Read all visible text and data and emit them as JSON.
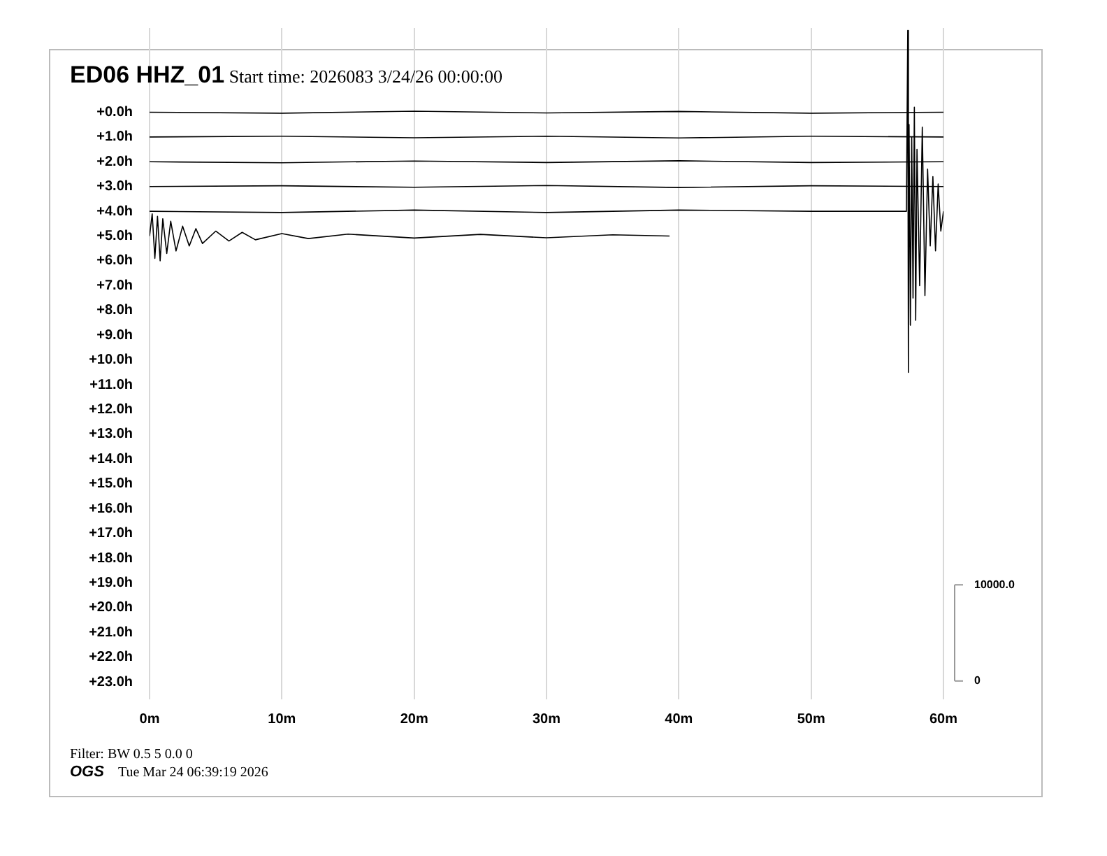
{
  "chart_data": {
    "type": "line",
    "title": "ED06 HHZ_01",
    "subtitle": "Start time: 2026083  3/24/26 00:00:00",
    "annotations": [
      "Filter: BW 0.5 5 0.0 0",
      "OGS",
      "Tue Mar 24 06:39:19 2026"
    ],
    "xlim": [
      0,
      60
    ],
    "xticks": [
      {
        "value": 0,
        "label": "0m"
      },
      {
        "value": 10,
        "label": "10m"
      },
      {
        "value": 20,
        "label": "20m"
      },
      {
        "value": 30,
        "label": "30m"
      },
      {
        "value": 40,
        "label": "40m"
      },
      {
        "value": 50,
        "label": "50m"
      },
      {
        "value": 60,
        "label": "60m"
      }
    ],
    "ylim": [
      23.7,
      -3.4
    ],
    "yticks": [
      {
        "value": 0,
        "label": "+0.0h"
      },
      {
        "value": 1,
        "label": "+1.0h"
      },
      {
        "value": 2,
        "label": "+2.0h"
      },
      {
        "value": 3,
        "label": "+3.0h"
      },
      {
        "value": 4,
        "label": "+4.0h"
      },
      {
        "value": 5,
        "label": "+5.0h"
      },
      {
        "value": 6,
        "label": "+6.0h"
      },
      {
        "value": 7,
        "label": "+7.0h"
      },
      {
        "value": 8,
        "label": "+8.0h"
      },
      {
        "value": 9,
        "label": "+9.0h"
      },
      {
        "value": 10,
        "label": "+10.0h"
      },
      {
        "value": 11,
        "label": "+11.0h"
      },
      {
        "value": 12,
        "label": "+12.0h"
      },
      {
        "value": 13,
        "label": "+13.0h"
      },
      {
        "value": 14,
        "label": "+14.0h"
      },
      {
        "value": 15,
        "label": "+15.0h"
      },
      {
        "value": 16,
        "label": "+16.0h"
      },
      {
        "value": 17,
        "label": "+17.0h"
      },
      {
        "value": 18,
        "label": "+18.0h"
      },
      {
        "value": 19,
        "label": "+19.0h"
      },
      {
        "value": 20,
        "label": "+20.0h"
      },
      {
        "value": 21,
        "label": "+21.0h"
      },
      {
        "value": 22,
        "label": "+22.0h"
      },
      {
        "value": 23,
        "label": "+23.0h"
      }
    ],
    "y2lim": [
      -1900,
      67900
    ],
    "y2ticks": [
      0,
      {
        "value": 10000,
        "label": "10000.0"
      }
    ],
    "grid": "x",
    "legend": false,
    "marker": "none",
    "line_style": "solid",
    "series": [
      {
        "color": "#000000",
        "x": [
          0,
          10,
          20,
          30,
          40,
          50,
          60
        ],
        "values": [
          0,
          0.04,
          -0.04,
          0.03,
          -0.03,
          0.04,
          0
        ]
      },
      {
        "color": "#000000",
        "x": [
          0,
          10,
          20,
          30,
          40,
          50,
          60
        ],
        "values": [
          1,
          0.97,
          1.03,
          0.97,
          1.04,
          0.97,
          1
        ]
      },
      {
        "color": "#000000",
        "x": [
          0,
          10,
          20,
          30,
          40,
          50,
          60
        ],
        "values": [
          2,
          2.04,
          1.97,
          2.03,
          1.96,
          2.03,
          2
        ]
      },
      {
        "color": "#000000",
        "x": [
          0,
          10,
          20,
          30,
          40,
          50,
          60
        ],
        "values": [
          3,
          2.97,
          3.03,
          2.96,
          3.04,
          2.97,
          3
        ]
      },
      {
        "color": "#000000",
        "x": [
          0,
          10,
          20,
          30,
          40,
          50,
          57.2,
          57.3,
          57.35,
          57.4,
          57.5,
          57.6,
          57.7,
          57.8,
          57.9,
          58.0,
          58.2,
          58.4,
          58.6,
          58.8,
          59.0,
          59.2,
          59.4,
          59.6,
          59.8,
          60
        ],
        "values": [
          4,
          4.05,
          3.95,
          4.05,
          3.95,
          4,
          4,
          -3.3,
          10.5,
          0.5,
          8.6,
          1,
          7.5,
          -0.2,
          8.4,
          1.5,
          7,
          0.6,
          7.4,
          2.3,
          5.4,
          2.6,
          5.6,
          2.9,
          4.8,
          4
        ]
      },
      {
        "color": "#000000",
        "x": [
          0,
          0.2,
          0.4,
          0.6,
          0.8,
          1,
          1.3,
          1.6,
          2,
          2.5,
          3,
          3.5,
          4,
          5,
          6,
          7,
          8,
          10,
          12,
          15,
          20,
          25,
          30,
          35,
          39.3
        ],
        "values": [
          5,
          4.1,
          5.9,
          4.2,
          6,
          4.3,
          5.7,
          4.4,
          5.6,
          4.6,
          5.4,
          4.7,
          5.3,
          4.8,
          5.2,
          4.85,
          5.15,
          4.9,
          5.1,
          4.92,
          5.08,
          4.93,
          5.07,
          4.95,
          5
        ]
      }
    ]
  }
}
